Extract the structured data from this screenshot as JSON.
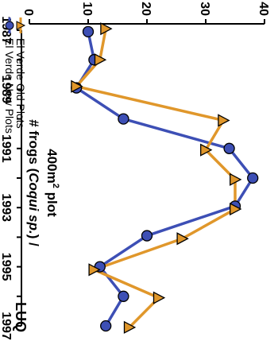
{
  "panel_label": "LUQ",
  "colors": {
    "new": "#3d4fb5",
    "old": "#e0972b",
    "axis": "#000000"
  },
  "chart_data": {
    "type": "line",
    "rotation": "rotated 90 degrees clockwise",
    "ylabel_line1": "# frogs (",
    "ylabel_italic": "Coqui sp.",
    "ylabel_line1_end": ") /",
    "ylabel_line2": "400m",
    "ylabel_sup": "2",
    "ylabel_line2_end": " plot",
    "xlabel": "",
    "xlim": [
      1987,
      1997
    ],
    "ylim": [
      0,
      40
    ],
    "xticks": [
      1987,
      1989,
      1991,
      1993,
      1995,
      1997
    ],
    "yticks": [
      0,
      10,
      20,
      30,
      40
    ],
    "legend": "top-left",
    "grid": false,
    "series": [
      {
        "name": "El Verde New Plots",
        "marker": "circle",
        "color_key": "new",
        "x": [
          1987.05,
          1988.0,
          1988.95,
          1990.0,
          1991.0,
          1992.0,
          1992.95,
          1993.95,
          1995.0,
          1996.0,
          1997.0
        ],
        "y": [
          10,
          11,
          8,
          16,
          34,
          38,
          35,
          20,
          12,
          16,
          13
        ]
      },
      {
        "name": "El Verde Old Plots",
        "marker": "triangle",
        "color_key": "old",
        "x": [
          1986.95,
          1988.0,
          1988.9,
          1990.05,
          1991.05,
          1992.05,
          1993.05,
          1994.05,
          1995.1,
          1996.05,
          1997.05
        ],
        "y": [
          13,
          12,
          8,
          33,
          30,
          35,
          35,
          26,
          11,
          22,
          17
        ]
      }
    ]
  }
}
